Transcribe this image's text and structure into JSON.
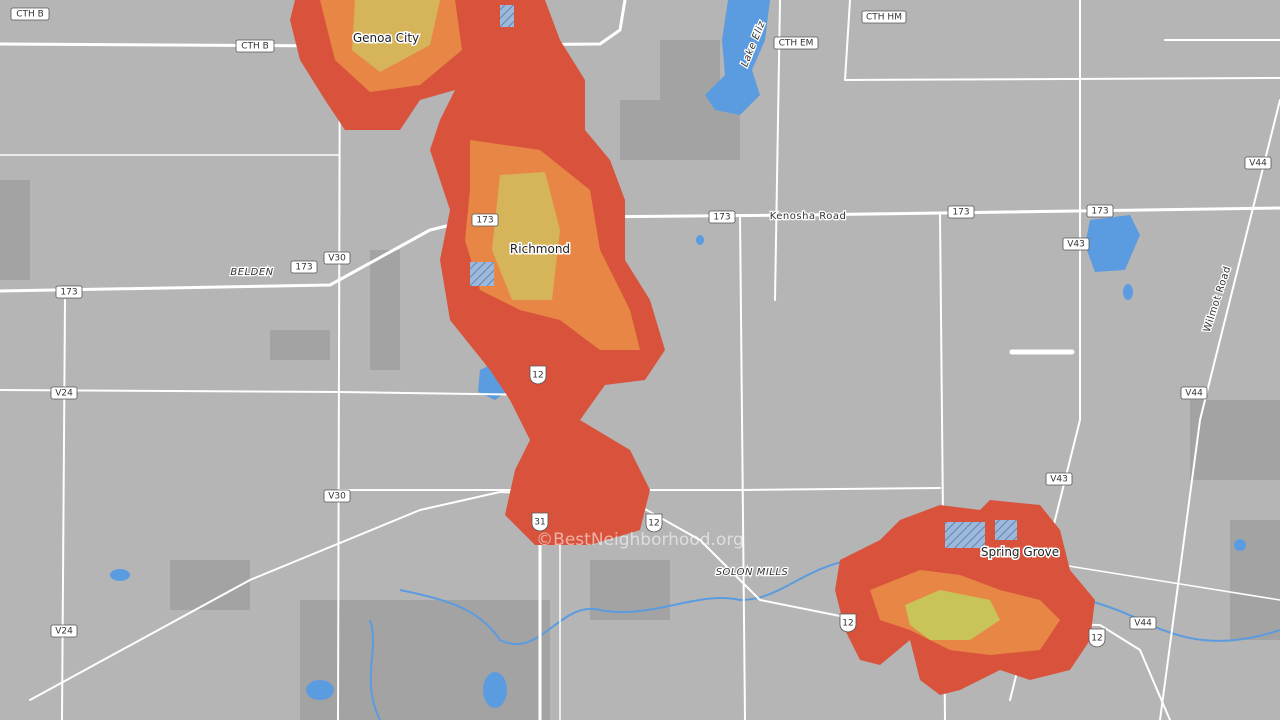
{
  "places": [
    "Genoa City",
    "Richmond",
    "Spring Grove"
  ],
  "road_labels": [
    "Kenosha Road",
    "BELDEN",
    "SOLON MILLS",
    "Wilmot Road",
    "Lake Eliz"
  ],
  "shields": [
    "CTH B",
    "CTH B",
    "CTH EM",
    "CTH HM",
    "V30",
    "V30",
    "V24",
    "V24",
    "V43",
    "V43",
    "V44",
    "V44",
    "V44",
    "173",
    "173",
    "173",
    "173",
    "173",
    "173",
    "12",
    "12",
    "12",
    "12",
    "31"
  ],
  "watermark": "©BestNeighborhood.org"
}
